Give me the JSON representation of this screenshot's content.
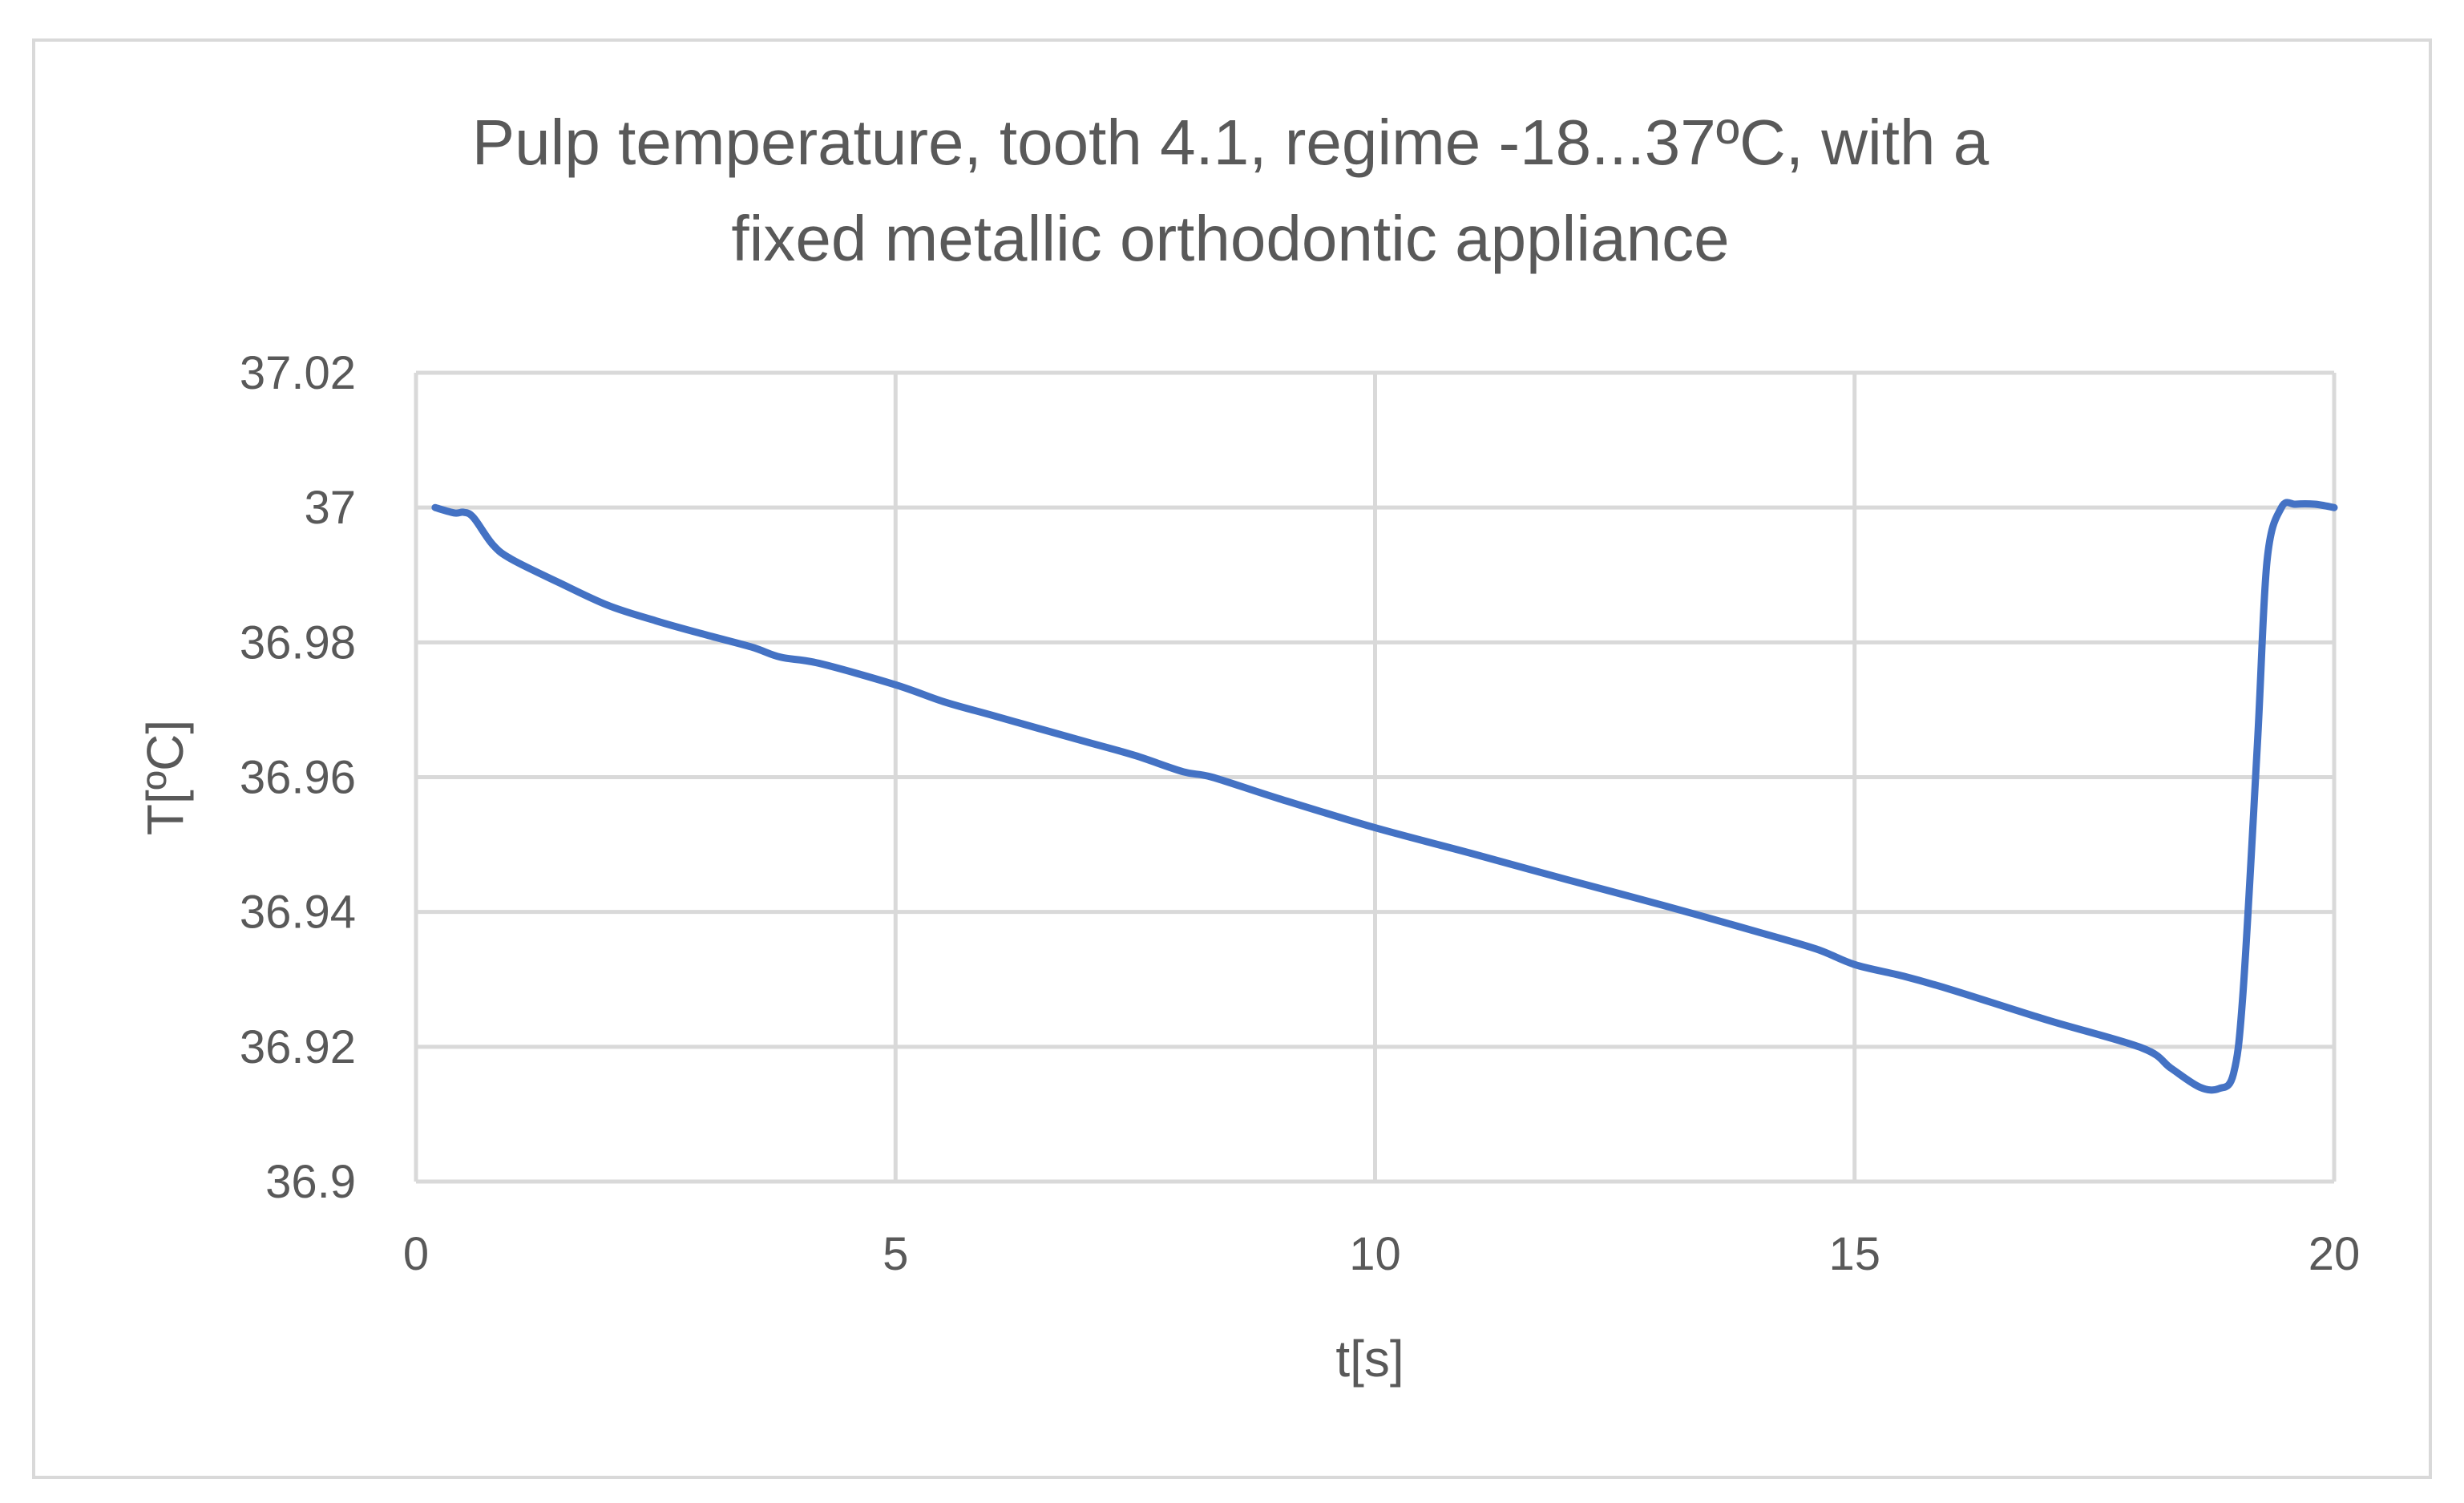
{
  "chart_data": {
    "type": "line",
    "title": "Pulp temperature, tooth 4.1, regime -18...37ºC, with a fixed metallic orthodontic appliance",
    "title_lines": [
      "Pulp temperature, tooth 4.1, regime -18...37ºC, with a",
      "fixed metallic orthodontic appliance"
    ],
    "xlabel": "t[s]",
    "ylabel": "T[ºC]",
    "xlim": [
      0,
      20
    ],
    "ylim": [
      36.9,
      37.02
    ],
    "x_ticks": [
      0,
      5,
      10,
      15,
      20
    ],
    "x_tick_labels": [
      "0",
      "5",
      "10",
      "15",
      "20"
    ],
    "y_ticks": [
      36.9,
      36.92,
      36.94,
      36.96,
      36.98,
      37.0,
      37.02
    ],
    "y_tick_labels": [
      "36.9",
      "36.92",
      "36.94",
      "36.96",
      "36.98",
      "37",
      "37.02"
    ],
    "grid": true,
    "legend": "none",
    "series": [
      {
        "color": "#4472c4",
        "x": [
          0.2,
          0.4,
          0.5,
          0.6,
          0.8,
          1.0,
          1.5,
          2.0,
          2.5,
          3.0,
          3.5,
          3.8,
          4.2,
          5.0,
          5.5,
          6.0,
          6.5,
          7.0,
          7.5,
          8.0,
          8.3,
          9.0,
          10.0,
          11.0,
          12.0,
          13.0,
          14.0,
          14.6,
          15.0,
          15.5,
          16.0,
          17.0,
          18.0,
          18.3,
          18.6,
          18.8,
          18.95,
          19.05,
          19.2,
          19.3,
          19.45,
          19.6,
          19.8,
          20.0
        ],
        "y": [
          37.0,
          36.9992,
          36.9993,
          36.9985,
          36.9945,
          36.9923,
          36.9888,
          36.9855,
          36.9832,
          36.9812,
          36.9793,
          36.9778,
          36.9769,
          36.9737,
          36.9712,
          36.9692,
          36.9672,
          36.9652,
          36.9632,
          36.9608,
          36.96,
          36.9568,
          36.9525,
          36.9487,
          36.9448,
          36.941,
          36.937,
          36.9345,
          36.9322,
          36.9305,
          36.9285,
          36.924,
          36.9198,
          36.9168,
          36.914,
          36.9138,
          36.916,
          36.928,
          36.965,
          36.992,
          37.0,
          37.0005,
          37.0005,
          37.0
        ]
      }
    ]
  }
}
